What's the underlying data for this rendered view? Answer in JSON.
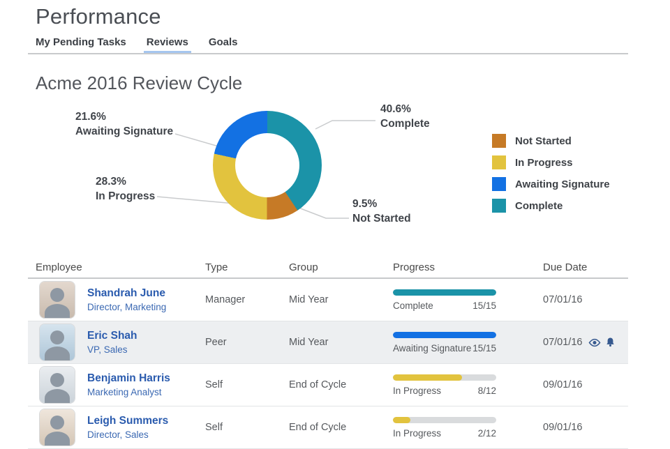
{
  "page": {
    "title": "Performance"
  },
  "tabs": {
    "items": [
      {
        "label": "My Pending Tasks",
        "active": false
      },
      {
        "label": "Reviews",
        "active": true
      },
      {
        "label": "Goals",
        "active": false
      }
    ]
  },
  "section": {
    "title": "Acme 2016 Review Cycle"
  },
  "chart_data": {
    "type": "pie",
    "variant": "donut",
    "title": "Acme 2016 Review Cycle",
    "start_angle_deg": 0,
    "direction": "clockwise",
    "legend_position": "right",
    "segments": [
      {
        "label": "Complete",
        "value": 40.6,
        "display": "40.6%",
        "color": "#1B93A8"
      },
      {
        "label": "Not Started",
        "value": 9.5,
        "display": "9.5%",
        "color": "#C67A26"
      },
      {
        "label": "In Progress",
        "value": 28.3,
        "display": "28.3%",
        "color": "#E2C33E"
      },
      {
        "label": "Awaiting Signature",
        "value": 21.6,
        "display": "21.6%",
        "color": "#1371E3"
      }
    ]
  },
  "legend": {
    "items": [
      {
        "label": "Not Started",
        "color": "#C67A26"
      },
      {
        "label": "In Progress",
        "color": "#E2C33E"
      },
      {
        "label": "Awaiting Signature",
        "color": "#1371E3"
      },
      {
        "label": "Complete",
        "color": "#1B93A8"
      }
    ]
  },
  "table": {
    "columns": [
      "Employee",
      "Type",
      "Group",
      "Progress",
      "Due Date"
    ],
    "rows": [
      {
        "name": "Shandrah June",
        "title": "Director, Marketing",
        "type": "Manager",
        "group": "Mid Year",
        "progress": {
          "status": "Complete",
          "count": "15/15",
          "pct": 100,
          "color": "#1B93A8"
        },
        "due_date": "07/01/16",
        "highlighted": false
      },
      {
        "name": "Eric Shah",
        "title": "VP, Sales",
        "type": "Peer",
        "group": "Mid Year",
        "progress": {
          "status": "Awaiting Signature",
          "count": "15/15",
          "pct": 100,
          "color": "#1371E3"
        },
        "due_date": "07/01/16",
        "highlighted": true,
        "icons": [
          "eye",
          "bell"
        ]
      },
      {
        "name": "Benjamin Harris",
        "title": "Marketing Analyst",
        "type": "Self",
        "group": "End of Cycle",
        "progress": {
          "status": "In Progress",
          "count": "8/12",
          "pct": 66.7,
          "color": "#E2C33E"
        },
        "due_date": "09/01/16",
        "highlighted": false
      },
      {
        "name": "Leigh Summers",
        "title": "Director, Sales",
        "type": "Self",
        "group": "End of Cycle",
        "progress": {
          "status": "In Progress",
          "count": "2/12",
          "pct": 16.7,
          "color": "#E2C33E"
        },
        "due_date": "09/01/16",
        "highlighted": false
      }
    ]
  }
}
